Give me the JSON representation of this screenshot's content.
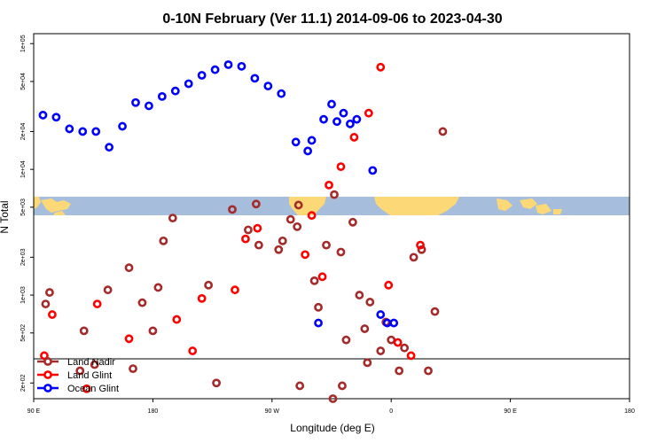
{
  "chart_data": {
    "type": "scatter",
    "title": "0-10N February (Ver 11.1)   2014-09-06 to 2023-04-30",
    "xlabel": "Longitude (deg E)",
    "ylabel": "N Total",
    "x_ticks": [
      {
        "lon": -270,
        "label": "90 E"
      },
      {
        "lon": -180,
        "label": "180"
      },
      {
        "lon": -90,
        "label": "90 W"
      },
      {
        "lon": 0,
        "label": "0"
      },
      {
        "lon": 90,
        "label": "90 E"
      },
      {
        "lon": 180,
        "label": "180"
      }
    ],
    "y_ticks": [
      {
        "value": 100000,
        "label": "1e+05"
      },
      {
        "value": 50000,
        "label": "5e+04"
      },
      {
        "value": 20000,
        "label": "2e+04"
      },
      {
        "value": 10000,
        "label": "1e+04"
      },
      {
        "value": 5000,
        "label": "5e+03"
      },
      {
        "value": 2000,
        "label": "2e+03"
      },
      {
        "value": 1000,
        "label": "1e+03"
      },
      {
        "value": 500,
        "label": "5e+02"
      },
      {
        "value": 200,
        "label": "2e+02"
      }
    ],
    "xlim": [
      -270,
      180
    ],
    "ylim": [
      150,
      120000
    ],
    "y_scale": "log",
    "map_band": {
      "lat_range": "0-10N",
      "ocean_color": "#a6bddb",
      "land_color": "#fdd876"
    },
    "legend": {
      "placement": "bottom-left",
      "entries": [
        {
          "label": "Land Nadir",
          "color": "#a52a2a"
        },
        {
          "label": "Land Glint",
          "color": "#ff0000"
        },
        {
          "label": "Ocean Glint",
          "color": "#0000ff"
        }
      ]
    },
    "series": [
      {
        "name": "Land Nadir",
        "color": "#a52a2a",
        "points": [
          [
            -261,
            850
          ],
          [
            -258,
            1050
          ],
          [
            -235,
            250
          ],
          [
            -232,
            520
          ],
          [
            -224,
            280
          ],
          [
            -214,
            1100
          ],
          [
            -198,
            1650
          ],
          [
            -172,
            2700
          ],
          [
            -165,
            4100
          ],
          [
            -138,
            1200
          ],
          [
            -132,
            200
          ],
          [
            -82,
            2700
          ],
          [
            -76,
            4000
          ],
          [
            -71,
            3500
          ],
          [
            -70,
            5200
          ],
          [
            -69,
            190
          ],
          [
            -49,
            2500
          ],
          [
            -43,
            6300
          ],
          [
            -38,
            2200
          ],
          [
            -34,
            440
          ],
          [
            -29,
            3800
          ],
          [
            -24,
            1000
          ],
          [
            -18,
            290
          ],
          [
            -20,
            540
          ],
          [
            -16,
            880
          ],
          [
            -8,
            360
          ],
          [
            0,
            440
          ],
          [
            -120,
            4800
          ],
          [
            -102,
            5300
          ],
          [
            -108,
            3300
          ],
          [
            -100,
            2500
          ],
          [
            -85,
            2300
          ],
          [
            -58,
            1300
          ],
          [
            -55,
            800
          ],
          [
            -44,
            150
          ],
          [
            -37,
            190
          ],
          [
            -4,
            610
          ],
          [
            10,
            380
          ],
          [
            6,
            250
          ],
          [
            -195,
            260
          ],
          [
            -188,
            870
          ],
          [
            -180,
            520
          ],
          [
            -176,
            1150
          ],
          [
            17,
            2000
          ],
          [
            23,
            2300
          ],
          [
            28,
            250
          ],
          [
            33,
            740
          ],
          [
            39,
            20000
          ]
        ]
      },
      {
        "name": "Land Glint",
        "color": "#ff0000",
        "points": [
          [
            -262,
            330
          ],
          [
            -256,
            700
          ],
          [
            -230,
            180
          ],
          [
            -222,
            850
          ],
          [
            -198,
            450
          ],
          [
            -162,
            640
          ],
          [
            -150,
            360
          ],
          [
            -143,
            940
          ],
          [
            -118,
            1100
          ],
          [
            -110,
            2800
          ],
          [
            -101,
            3400
          ],
          [
            -65,
            2100
          ],
          [
            -60,
            4300
          ],
          [
            -52,
            1400
          ],
          [
            -47,
            7500
          ],
          [
            -38,
            10500
          ],
          [
            -28,
            18000
          ],
          [
            -17,
            28000
          ],
          [
            -8,
            65000
          ],
          [
            -2,
            1200
          ],
          [
            5,
            420
          ],
          [
            15,
            330
          ],
          [
            22,
            2500
          ]
        ]
      },
      {
        "name": "Ocean Glint",
        "color": "#0000ff",
        "points": [
          [
            -263,
            27000
          ],
          [
            -253,
            26000
          ],
          [
            -243,
            21000
          ],
          [
            -233,
            20000
          ],
          [
            -223,
            20000
          ],
          [
            -213,
            15000
          ],
          [
            -203,
            22000
          ],
          [
            -193,
            34000
          ],
          [
            -183,
            32000
          ],
          [
            -173,
            38000
          ],
          [
            -163,
            42000
          ],
          [
            -153,
            48000
          ],
          [
            -143,
            56000
          ],
          [
            -133,
            62000
          ],
          [
            -123,
            68000
          ],
          [
            -113,
            66000
          ],
          [
            -103,
            53000
          ],
          [
            -93,
            46000
          ],
          [
            -83,
            40000
          ],
          [
            -72,
            16500
          ],
          [
            -55,
            600
          ],
          [
            -51,
            25000
          ],
          [
            -41,
            24000
          ],
          [
            -31,
            23000
          ],
          [
            -14,
            9800
          ],
          [
            -3,
            600
          ],
          [
            2,
            600
          ],
          [
            -8,
            700
          ],
          [
            -45,
            33000
          ],
          [
            -36,
            28000
          ],
          [
            -26,
            25000
          ],
          [
            -60,
            17000
          ],
          [
            -63,
            14000
          ]
        ]
      }
    ]
  }
}
